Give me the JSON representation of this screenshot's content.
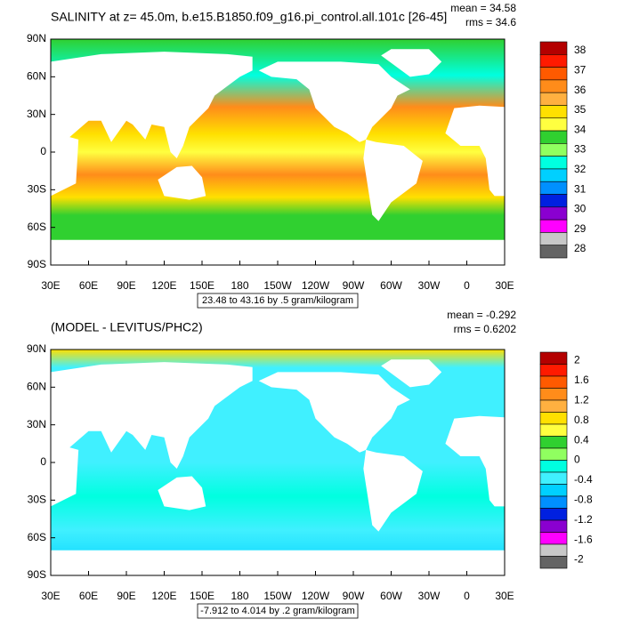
{
  "panels": [
    {
      "title": "SALINITY at z=  45.0m, b.e15.B1850.f09_g16.pi_control.all.101c [26-45]",
      "mean": "mean = 34.58",
      "rms": "rms = 34.6",
      "lat_ticks": [
        "90N",
        "60N",
        "30N",
        "0",
        "30S",
        "60S",
        "90S"
      ],
      "lon_ticks": [
        "30E",
        "60E",
        "90E",
        "120E",
        "150E",
        "180",
        "150W",
        "120W",
        "90W",
        "60W",
        "30W",
        "0",
        "30E"
      ],
      "range_note": "23.48 to 43.16 by .5 gram/kilogram",
      "colorbar": {
        "labels": [
          38,
          37,
          36,
          35,
          34,
          33,
          32,
          31,
          30,
          29,
          28
        ],
        "colors": [
          "#b40000",
          "#ff1a00",
          "#ff5a00",
          "#ff8c1a",
          "#ffb040",
          "#ffe000",
          "#ffff40",
          "#30d030",
          "#90ff60",
          "#00ffe0",
          "#00d0ff",
          "#0090ff",
          "#0020e0",
          "#8a00d0",
          "#ff00ff",
          "#c8c8c8",
          "#646464"
        ]
      }
    },
    {
      "title": "(MODEL - LEVITUS/PHC2)",
      "mean": "mean = -0.292",
      "rms": "rms = 0.6202",
      "lat_ticks": [
        "90N",
        "60N",
        "30N",
        "0",
        "30S",
        "60S",
        "90S"
      ],
      "lon_ticks": [
        "30E",
        "60E",
        "90E",
        "120E",
        "150E",
        "180",
        "150W",
        "120W",
        "90W",
        "60W",
        "30W",
        "0",
        "30E"
      ],
      "range_note": "-7.912 to 4.014 by .2 gram/kilogram",
      "colorbar": {
        "labels": [
          2,
          1.6,
          1.2,
          0.8,
          0.4,
          0,
          -0.4,
          -0.8,
          -1.2,
          -1.6,
          -2
        ],
        "colors": [
          "#b40000",
          "#ff1a00",
          "#ff5a00",
          "#ff8c1a",
          "#ffb040",
          "#ffe000",
          "#ffff40",
          "#30d030",
          "#90ff60",
          "#00ffe0",
          "#40f0ff",
          "#00d0ff",
          "#0090ff",
          "#0020e0",
          "#8a00d0",
          "#ff00ff",
          "#c8c8c8",
          "#646464"
        ]
      }
    }
  ]
}
